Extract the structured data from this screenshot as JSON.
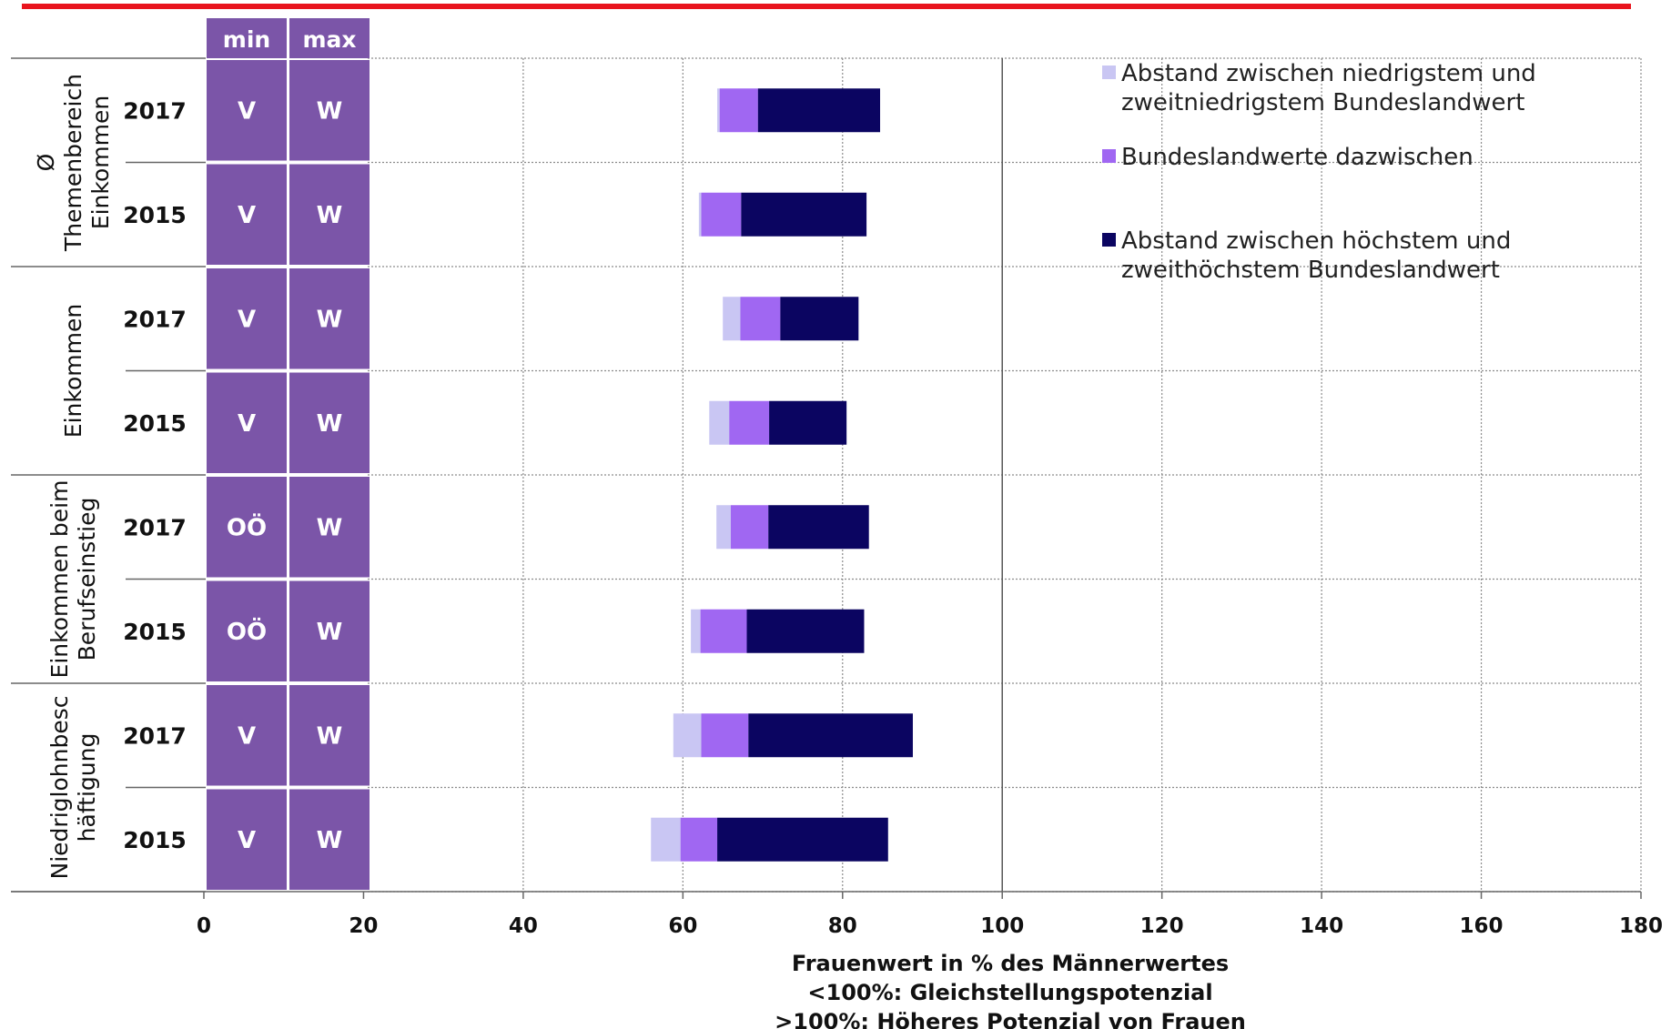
{
  "colors": {
    "low_gap": "#c9c6f3",
    "middle": "#a067f2",
    "high_gap": "#0b0561",
    "table_fill": "#7b55a8",
    "top_rule": "#e8141d"
  },
  "table": {
    "min_header": "min",
    "max_header": "max"
  },
  "groups": [
    {
      "label_lines": [
        "Ø",
        "Themenbereich",
        "Einkommen"
      ]
    },
    {
      "label_lines": [
        "Einkommen"
      ]
    },
    {
      "label_lines": [
        "Einkommen beim",
        "Berufseinstieg"
      ]
    },
    {
      "label_lines": [
        "Niedriglohnbesc",
        "häftigung"
      ]
    }
  ],
  "rows": [
    {
      "group": 0,
      "year": "2017",
      "min": "V",
      "max": "W"
    },
    {
      "group": 0,
      "year": "2015",
      "min": "V",
      "max": "W"
    },
    {
      "group": 1,
      "year": "2017",
      "min": "V",
      "max": "W"
    },
    {
      "group": 1,
      "year": "2015",
      "min": "V",
      "max": "W"
    },
    {
      "group": 2,
      "year": "2017",
      "min": "OÖ",
      "max": "W"
    },
    {
      "group": 2,
      "year": "2015",
      "min": "OÖ",
      "max": "W"
    },
    {
      "group": 3,
      "year": "2017",
      "min": "V",
      "max": "W"
    },
    {
      "group": 3,
      "year": "2015",
      "min": "V",
      "max": "W"
    }
  ],
  "chart_data": {
    "type": "bar",
    "orientation": "horizontal",
    "stacked": true,
    "categories": [
      "Ø Themenbereich Einkommen 2017",
      "Ø Themenbereich Einkommen 2015",
      "Einkommen 2017",
      "Einkommen 2015",
      "Einkommen beim Berufseinstieg 2017",
      "Einkommen beim Berufseinstieg 2015",
      "Niedriglohnbeschäftigung 2017",
      "Niedriglohnbeschäftigung 2015"
    ],
    "series": [
      {
        "name": "Abstand zwischen niedrigstem und zweitniedrigstem Bundeslandwert",
        "color_key": "low_gap",
        "start": [
          64.3,
          62.0,
          65.0,
          63.3,
          64.2,
          61.0,
          58.8,
          56.0
        ],
        "end": [
          64.6,
          62.3,
          67.2,
          65.8,
          66.0,
          62.2,
          62.3,
          59.7
        ]
      },
      {
        "name": "Bundeslandwerte dazwischen",
        "color_key": "middle",
        "start": [
          64.6,
          62.3,
          67.2,
          65.8,
          66.0,
          62.2,
          62.3,
          59.7
        ],
        "end": [
          69.4,
          67.3,
          72.2,
          70.8,
          70.7,
          68.0,
          68.2,
          64.3
        ]
      },
      {
        "name": "Abstand zwischen höchstem und zweithöchstem Bundeslandwert",
        "color_key": "high_gap",
        "start": [
          69.4,
          67.3,
          72.2,
          70.8,
          70.7,
          68.0,
          68.2,
          64.3
        ],
        "end": [
          84.7,
          83.0,
          82.0,
          80.5,
          83.3,
          82.7,
          88.8,
          85.7
        ]
      }
    ],
    "legend_lines": [
      [
        "Abstand zwischen niedrigstem und",
        "zweitniedrigstem Bundeslandwert"
      ],
      [
        "Bundeslandwerte dazwischen"
      ],
      [
        "Abstand zwischen höchstem und",
        "zweithöchstem Bundeslandwert"
      ]
    ],
    "xlim": [
      0,
      180
    ],
    "xticks": [
      0,
      20,
      40,
      60,
      80,
      100,
      120,
      140,
      160,
      180
    ],
    "xlabel_lines": [
      "Frauenwert in % des Männerwertes",
      "<100%: Gleichstellungspotenzial",
      ">100%: Höheres Potenzial von Frauen"
    ],
    "grid": true,
    "legend_position": "top-right"
  }
}
